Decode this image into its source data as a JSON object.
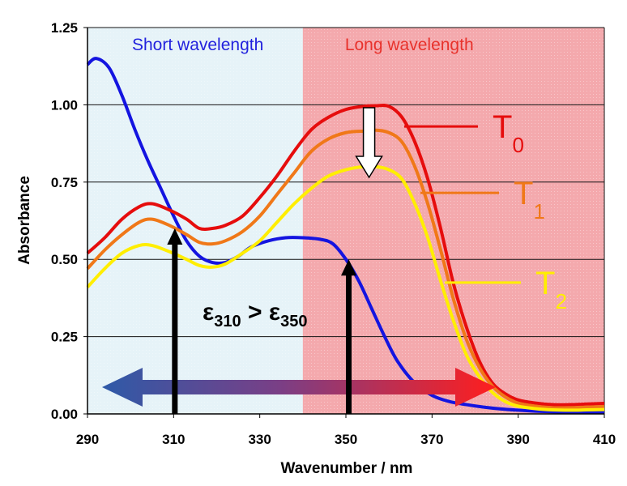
{
  "chart_data": {
    "type": "line",
    "title": "",
    "xlabel": "Wavenumber / nm",
    "ylabel": "Absorbance",
    "xlim": [
      290,
      410
    ],
    "ylim": [
      0,
      1.25
    ],
    "xticks": [
      "290",
      "310",
      "330",
      "350",
      "370",
      "390",
      "410"
    ],
    "yticks": [
      "0.00",
      "0.25",
      "0.50",
      "0.75",
      "1.00",
      "1.25"
    ],
    "grid": true,
    "regions": [
      {
        "label": "Short wavelength",
        "x": [
          290,
          340
        ],
        "color": "#e6f3f8",
        "text_color": "#2222dd"
      },
      {
        "label": "Long wavelength",
        "x": [
          340,
          410
        ],
        "color": "#f4a9ad",
        "text_color": "#e8322c"
      }
    ],
    "series": [
      {
        "color": "#1414e0",
        "x": [
          290,
          292,
          295,
          298,
          301,
          304,
          307,
          310,
          313,
          316,
          319,
          322,
          325,
          328,
          332,
          336,
          340,
          344,
          347,
          350,
          353,
          356,
          359,
          362,
          366,
          370,
          374,
          378,
          382,
          386,
          390,
          394,
          398,
          402,
          406,
          410
        ],
        "y": [
          1.13,
          1.15,
          1.12,
          1.03,
          0.92,
          0.82,
          0.73,
          0.64,
          0.56,
          0.51,
          0.49,
          0.49,
          0.51,
          0.54,
          0.56,
          0.57,
          0.57,
          0.565,
          0.55,
          0.5,
          0.43,
          0.34,
          0.25,
          0.17,
          0.1,
          0.06,
          0.04,
          0.03,
          0.022,
          0.016,
          0.012,
          0.009,
          0.007,
          0.006,
          0.006,
          0.007
        ]
      },
      {
        "name": "T0",
        "color": "#e60d0d",
        "x": [
          290,
          294,
          298,
          302,
          305,
          309,
          313,
          316,
          319,
          322,
          326,
          330,
          334,
          338,
          342,
          346,
          350,
          354,
          357,
          360,
          363,
          366,
          369,
          372,
          375,
          378,
          381,
          384,
          387,
          390,
          394,
          398,
          402,
          406,
          410
        ],
        "y": [
          0.52,
          0.57,
          0.63,
          0.67,
          0.68,
          0.66,
          0.63,
          0.6,
          0.6,
          0.61,
          0.64,
          0.7,
          0.77,
          0.85,
          0.92,
          0.96,
          0.985,
          0.995,
          0.997,
          0.995,
          0.96,
          0.88,
          0.76,
          0.6,
          0.42,
          0.28,
          0.17,
          0.1,
          0.065,
          0.045,
          0.035,
          0.03,
          0.03,
          0.032,
          0.034
        ]
      },
      {
        "name": "T1",
        "color": "#f07818",
        "x": [
          290,
          294,
          298,
          302,
          305,
          309,
          313,
          316,
          319,
          322,
          326,
          330,
          334,
          338,
          342,
          346,
          350,
          354,
          357,
          360,
          363,
          366,
          369,
          372,
          375,
          378,
          381,
          384,
          387,
          390,
          394,
          398,
          402,
          406,
          410
        ],
        "y": [
          0.47,
          0.53,
          0.58,
          0.62,
          0.63,
          0.61,
          0.58,
          0.555,
          0.55,
          0.56,
          0.59,
          0.64,
          0.71,
          0.78,
          0.85,
          0.89,
          0.91,
          0.915,
          0.918,
          0.91,
          0.88,
          0.8,
          0.68,
          0.53,
          0.37,
          0.24,
          0.15,
          0.09,
          0.055,
          0.035,
          0.025,
          0.02,
          0.02,
          0.022,
          0.024
        ]
      },
      {
        "name": "T2",
        "color": "#ffee00",
        "x": [
          290,
          294,
          298,
          302,
          305,
          309,
          313,
          316,
          319,
          322,
          326,
          330,
          334,
          338,
          342,
          346,
          350,
          354,
          357,
          360,
          363,
          366,
          369,
          372,
          375,
          378,
          381,
          384,
          387,
          390,
          394,
          398,
          402,
          406,
          410
        ],
        "y": [
          0.41,
          0.47,
          0.52,
          0.545,
          0.545,
          0.525,
          0.5,
          0.48,
          0.475,
          0.485,
          0.52,
          0.56,
          0.62,
          0.68,
          0.73,
          0.77,
          0.79,
          0.8,
          0.8,
          0.79,
          0.76,
          0.68,
          0.57,
          0.43,
          0.3,
          0.19,
          0.12,
          0.07,
          0.04,
          0.025,
          0.017,
          0.013,
          0.012,
          0.013,
          0.014
        ]
      }
    ],
    "legend": [
      {
        "label": "T",
        "sub": "0",
        "color": "#e60d0d"
      },
      {
        "label": "T",
        "sub": "1",
        "color": "#f07818"
      },
      {
        "label": "T",
        "sub": "2",
        "color": "#ffee00"
      }
    ],
    "annotations": {
      "epsilon": {
        "lhs": "ε",
        "lhs_sub": "310",
        "op": " > ",
        "rhs": "ε",
        "rhs_sub": "350"
      },
      "arrows_up_at_x": [
        310,
        350
      ],
      "arrow_down_at_x": 355,
      "wavelength_arrow": {
        "from_color": "#2e5aa8",
        "to_color": "#ff1e1e"
      }
    }
  }
}
